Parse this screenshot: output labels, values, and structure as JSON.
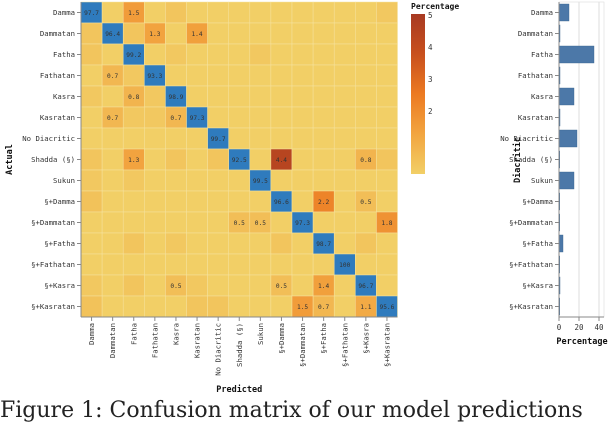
{
  "chart_data": [
    {
      "type": "heatmap",
      "title": "",
      "xlabel": "Predicted",
      "ylabel": "Actual",
      "x_categories": [
        "Damma",
        "Dammatan",
        "Fatha",
        "Fathatan",
        "Kasra",
        "Kasratan",
        "No Diacritic",
        "Shadda (§)",
        "Sukun",
        "§+Damma",
        "§+Dammatan",
        "§+Fatha",
        "§+Fathatan",
        "§+Kasra",
        "§+Kasratan"
      ],
      "y_categories": [
        "Damma",
        "Dammatan",
        "Fatha",
        "Fathatan",
        "Kasra",
        "Kasratan",
        "No Diacritic",
        "Shadda (§)",
        "Sukun",
        "§+Damma",
        "§+Dammatan",
        "§+Fatha",
        "§+Fathatan",
        "§+Kasra",
        "§+Kasratan"
      ],
      "diagonal_values": [
        97.7,
        96.4,
        99.2,
        93.3,
        98.9,
        97.3,
        99.7,
        92.5,
        99.5,
        96.6,
        97.3,
        98.7,
        100,
        96.7,
        95.6
      ],
      "off_diagonal_labeled": [
        {
          "row": "Damma",
          "col": "Fatha",
          "value": 1.5
        },
        {
          "row": "Dammatan",
          "col": "Fathatan",
          "value": 1.3
        },
        {
          "row": "Dammatan",
          "col": "Kasratan",
          "value": 1.4
        },
        {
          "row": "Fathatan",
          "col": "Dammatan",
          "value": 0.7
        },
        {
          "row": "Kasra",
          "col": "Fatha",
          "value": 0.8
        },
        {
          "row": "Kasratan",
          "col": "Dammatan",
          "value": 0.7
        },
        {
          "row": "Kasratan",
          "col": "Kasra",
          "value": 0.7
        },
        {
          "row": "Shadda (§)",
          "col": "Fatha",
          "value": 1.3
        },
        {
          "row": "Shadda (§)",
          "col": "§+Damma",
          "value": 4.4
        },
        {
          "row": "Shadda (§)",
          "col": "§+Kasra",
          "value": 0.8
        },
        {
          "row": "§+Damma",
          "col": "§+Fatha",
          "value": 2.2
        },
        {
          "row": "§+Damma",
          "col": "§+Kasra",
          "value": 0.5
        },
        {
          "row": "§+Dammatan",
          "col": "Shadda (§)",
          "value": 0.5
        },
        {
          "row": "§+Dammatan",
          "col": "Sukun",
          "value": 0.5
        },
        {
          "row": "§+Dammatan",
          "col": "§+Kasratan",
          "value": 1.8
        },
        {
          "row": "§+Kasra",
          "col": "Kasra",
          "value": 0.5
        },
        {
          "row": "§+Kasra",
          "col": "§+Damma",
          "value": 0.5
        },
        {
          "row": "§+Kasra",
          "col": "§+Fatha",
          "value": 1.4
        },
        {
          "row": "§+Kasratan",
          "col": "§+Dammatan",
          "value": 1.5
        },
        {
          "row": "§+Kasratan",
          "col": "§+Fatha",
          "value": 0.7
        },
        {
          "row": "§+Kasratan",
          "col": "§+Kasra",
          "value": 1.1
        }
      ],
      "unlabeled_tint_cells": [
        {
          "row": "Damma",
          "col": "Kasra",
          "value": 0.3
        },
        {
          "row": "Damma",
          "col": "§+Kasratan",
          "value": 0.2
        },
        {
          "row": "Dammatan",
          "col": "Damma",
          "value": 0.3
        },
        {
          "row": "Dammatan",
          "col": "Fatha",
          "value": 0.3
        },
        {
          "row": "Fatha",
          "col": "Damma",
          "value": 0.3
        },
        {
          "row": "Fatha",
          "col": "Kasra",
          "value": 0.2
        },
        {
          "row": "Fatha",
          "col": "Sukun",
          "value": 0.2
        },
        {
          "row": "Fathatan",
          "col": "Fatha",
          "value": 0.2
        },
        {
          "row": "Kasra",
          "col": "Damma",
          "value": 0.2
        },
        {
          "row": "Kasra",
          "col": "Fathatan",
          "value": 0.2
        },
        {
          "row": "Kasratan",
          "col": "Fatha",
          "value": 0.2
        },
        {
          "row": "Kasratan",
          "col": "Fathatan",
          "value": 0.2
        },
        {
          "row": "Shadda (§)",
          "col": "Damma",
          "value": 0.3
        },
        {
          "row": "Shadda (§)",
          "col": "Kasra",
          "value": 0.3
        },
        {
          "row": "Shadda (§)",
          "col": "No Diacritic",
          "value": 0.3
        },
        {
          "row": "Shadda (§)",
          "col": "§+Kasratan",
          "value": 0.3
        },
        {
          "row": "Sukun",
          "col": "Damma",
          "value": 0.2
        },
        {
          "row": "Sukun",
          "col": "Fatha",
          "value": 0.2
        },
        {
          "row": "§+Damma",
          "col": "Damma",
          "value": 0.4
        },
        {
          "row": "§+Fatha",
          "col": "Fatha",
          "value": 0.3
        },
        {
          "row": "§+Fatha",
          "col": "Kasra",
          "value": 0.2
        },
        {
          "row": "§+Fatha",
          "col": "§+Kasra",
          "value": 0.3
        },
        {
          "row": "§+Fatha",
          "col": "§+Damma",
          "value": 0.3
        },
        {
          "row": "§+Kasra",
          "col": "Damma",
          "value": 0.2
        },
        {
          "row": "§+Kasra",
          "col": "Fatha",
          "value": 0.3
        },
        {
          "row": "§+Kasra",
          "col": "Kasratan",
          "value": 0.2
        },
        {
          "row": "§+Kasratan",
          "col": "Damma",
          "value": 0.4
        },
        {
          "row": "§+Kasratan",
          "col": "Kasratan",
          "value": 0.3
        },
        {
          "row": "§+Kasratan",
          "col": "No Diacritic",
          "value": 0.3
        }
      ],
      "color_scale": {
        "title": "Percentage",
        "domain": [
          0,
          5
        ],
        "ticks": [
          2,
          3,
          4,
          5
        ],
        "colors": [
          "#f2cf66",
          "#f2a540",
          "#ec7a22",
          "#c8501e",
          "#a83a22"
        ],
        "diagonal_color": "#2f7bbd"
      }
    },
    {
      "type": "bar",
      "orientation": "horizontal",
      "xlabel": "Percentage",
      "ylabel": "Diacritic",
      "categories": [
        "Damma",
        "Dammatan",
        "Fatha",
        "Fathatan",
        "Kasra",
        "Kasratan",
        "No Diacritic",
        "Shadda (§)",
        "Sukun",
        "§+Damma",
        "§+Dammatan",
        "§+Fatha",
        "§+Fathatan",
        "§+Kasra",
        "§+Kasratan"
      ],
      "values": [
        10,
        1,
        35,
        1,
        15,
        1,
        18,
        0.5,
        15,
        0.8,
        0.5,
        4,
        0.3,
        1,
        0.6
      ],
      "xlim": [
        0,
        45
      ],
      "x_ticks": [
        0,
        20,
        40
      ],
      "grid": true,
      "bar_color": "#4c78a8"
    }
  ],
  "caption": "Figure 1: Confusion matrix of our model predictions"
}
